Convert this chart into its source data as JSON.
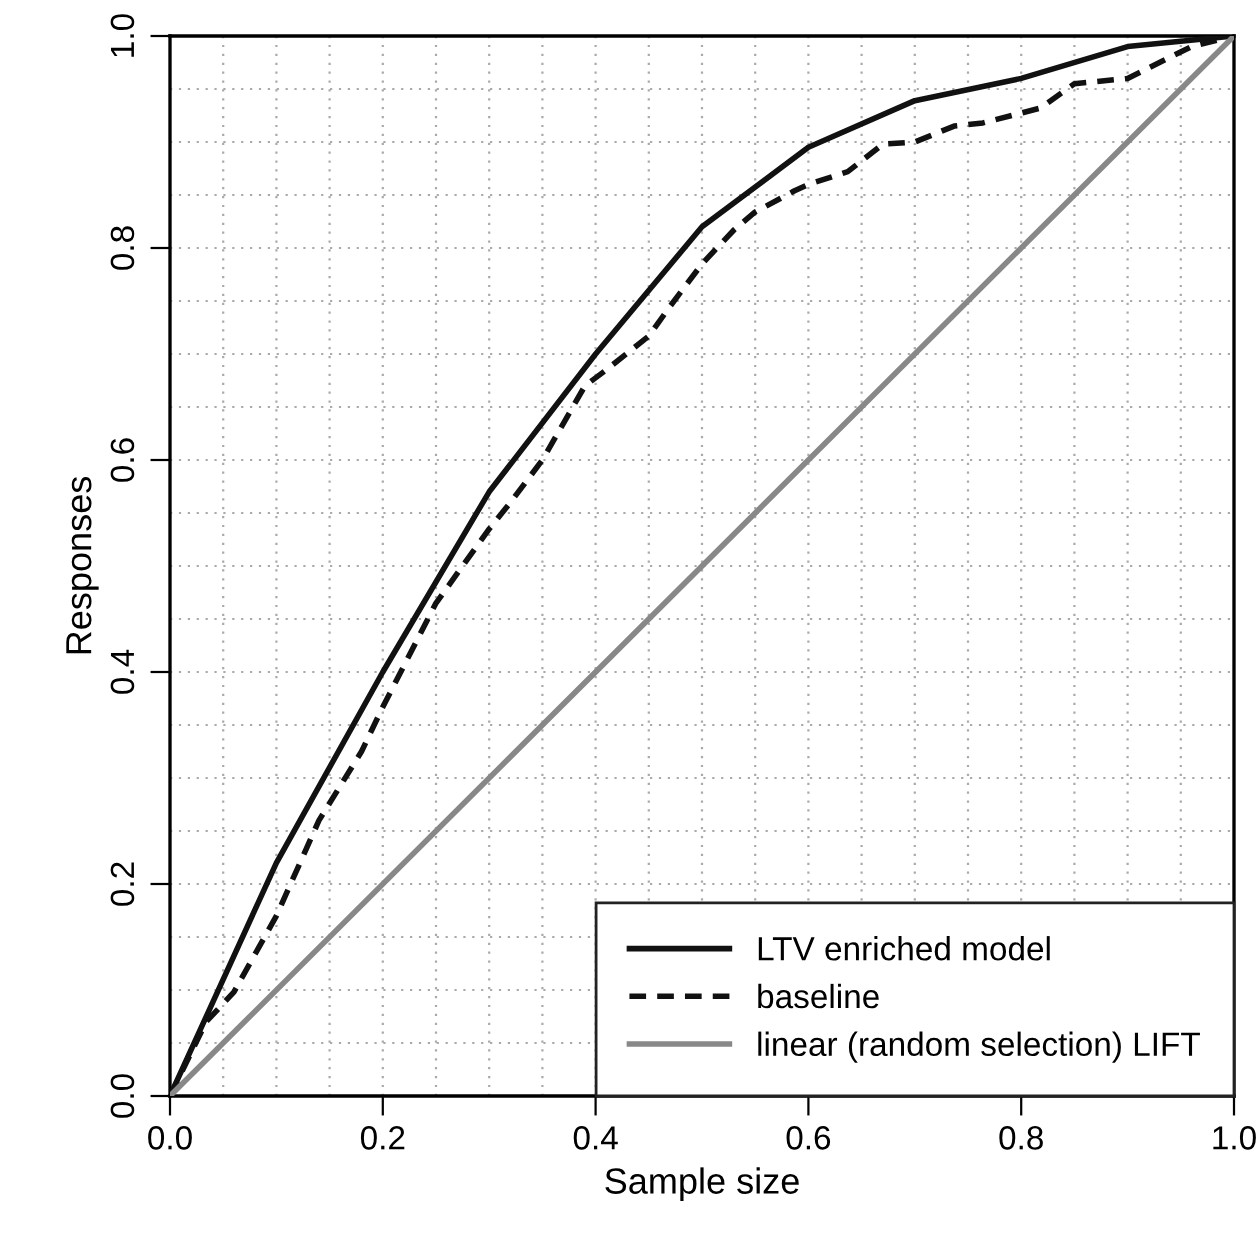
{
  "chart_data": {
    "type": "line",
    "xlabel": "Sample size",
    "ylabel": "Responses",
    "xlim": [
      0,
      1
    ],
    "ylim": [
      0,
      1
    ],
    "xticks": [
      {
        "value": 0,
        "label": "0.0"
      },
      0.2,
      0.4,
      0.6,
      0.8,
      {
        "value": 1,
        "label": "1.0"
      }
    ],
    "yticks": [
      {
        "value": 0,
        "label": "0.0"
      },
      0.2,
      0.4,
      0.6,
      0.8,
      {
        "value": 1,
        "label": "1.0"
      }
    ],
    "grid": true,
    "legend": "bottom right",
    "series": [
      {
        "name": "LTV enriched model",
        "color": "#111111",
        "line_style": "solid",
        "x": [
          0,
          0.1,
          0.2,
          0.3,
          0.4,
          0.5,
          0.6,
          0.7,
          0.8,
          0.9,
          1
        ],
        "values": [
          0,
          0.22,
          0.4,
          0.57,
          0.7,
          0.82,
          0.895,
          0.939,
          0.96,
          0.99,
          1
        ]
      },
      {
        "name": "baseline",
        "color": "#111111",
        "line_style": "dashed",
        "x": [
          0,
          0.034,
          0.06,
          0.1,
          0.14,
          0.18,
          0.2,
          0.25,
          0.3,
          0.32,
          0.35,
          0.39,
          0.41,
          0.45,
          0.47,
          0.5,
          0.53,
          0.55,
          0.587,
          0.6,
          0.637,
          0.67,
          0.7,
          0.737,
          0.764,
          0.818,
          0.85,
          0.9,
          0.96,
          1
        ],
        "values": [
          0,
          0.07,
          0.098,
          0.17,
          0.26,
          0.325,
          0.367,
          0.465,
          0.535,
          0.56,
          0.6,
          0.67,
          0.685,
          0.717,
          0.745,
          0.785,
          0.817,
          0.834,
          0.854,
          0.86,
          0.872,
          0.898,
          0.9,
          0.915,
          0.918,
          0.932,
          0.955,
          0.96,
          0.99,
          1
        ]
      },
      {
        "name": "linear (random selection) LIFT",
        "color": "#888888",
        "line_style": "solid",
        "x": [
          0,
          1
        ],
        "values": [
          0,
          1
        ]
      }
    ]
  }
}
